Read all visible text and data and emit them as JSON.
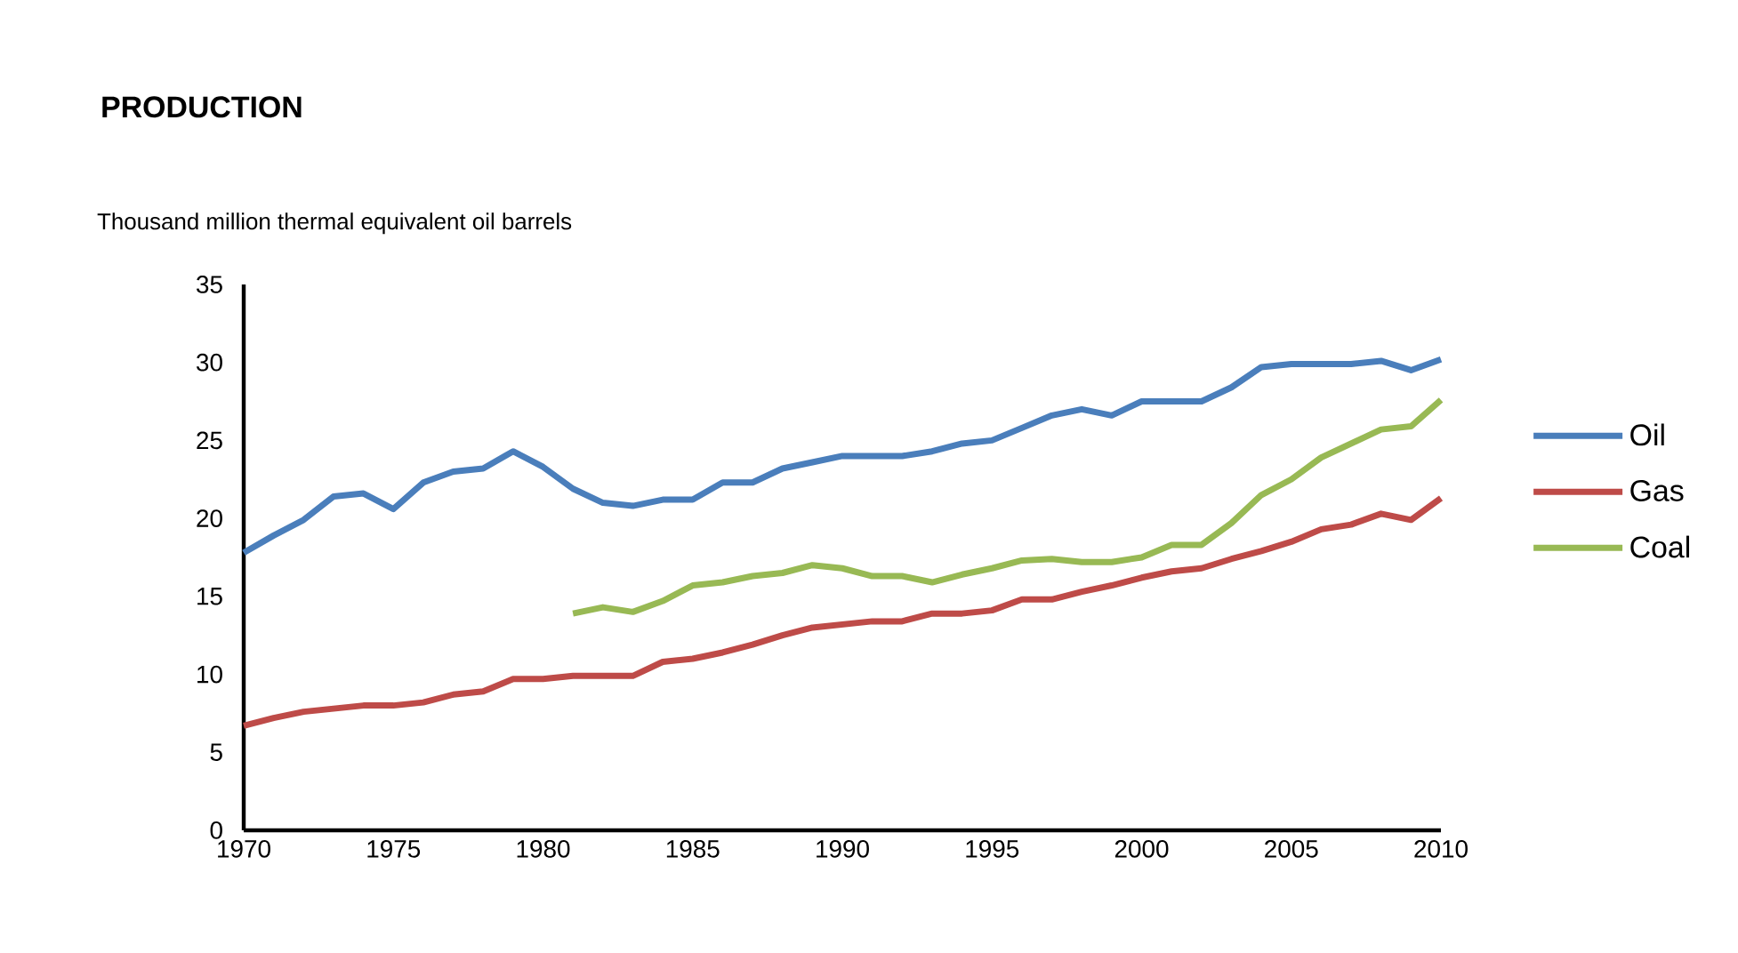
{
  "chart_data": {
    "type": "line",
    "title": "PRODUCTION",
    "ylabel": "Thousand million  thermal equivalent oil barrels",
    "x": [
      1970,
      1971,
      1972,
      1973,
      1974,
      1975,
      1976,
      1977,
      1978,
      1979,
      1980,
      1981,
      1982,
      1983,
      1984,
      1985,
      1986,
      1987,
      1988,
      1989,
      1990,
      1991,
      1992,
      1993,
      1994,
      1995,
      1996,
      1997,
      1998,
      1999,
      2000,
      2001,
      2002,
      2003,
      2004,
      2005,
      2006,
      2007,
      2008,
      2009,
      2010
    ],
    "series": [
      {
        "name": "Oil",
        "color": "#4a7ebb",
        "values": [
          17.8,
          18.9,
          19.9,
          21.4,
          21.6,
          20.6,
          22.3,
          23.0,
          23.2,
          24.3,
          23.3,
          21.9,
          21.0,
          20.8,
          21.2,
          21.2,
          22.3,
          22.3,
          23.2,
          23.6,
          24.0,
          24.0,
          24.0,
          24.3,
          24.8,
          25.0,
          25.8,
          26.6,
          27.0,
          26.6,
          27.5,
          27.5,
          27.5,
          28.4,
          29.7,
          29.9,
          29.9,
          29.9,
          30.1,
          29.5,
          30.2
        ]
      },
      {
        "name": "Gas",
        "color": "#be4b48",
        "values": [
          6.7,
          7.2,
          7.6,
          7.8,
          8.0,
          8.0,
          8.2,
          8.7,
          8.9,
          9.7,
          9.7,
          9.9,
          9.9,
          9.9,
          10.8,
          11.0,
          11.4,
          11.9,
          12.5,
          13.0,
          13.2,
          13.4,
          13.4,
          13.9,
          13.9,
          14.1,
          14.8,
          14.8,
          15.3,
          15.7,
          16.2,
          16.6,
          16.8,
          17.4,
          17.9,
          18.5,
          19.3,
          19.6,
          20.3,
          19.9,
          21.3
        ]
      },
      {
        "name": "Coal",
        "color": "#98b954",
        "values": [
          null,
          null,
          null,
          null,
          null,
          null,
          null,
          null,
          null,
          null,
          null,
          13.9,
          14.3,
          14.0,
          14.7,
          15.7,
          15.9,
          16.3,
          16.5,
          17.0,
          16.8,
          16.3,
          16.3,
          15.9,
          16.4,
          16.8,
          17.3,
          17.4,
          17.2,
          17.2,
          17.5,
          18.3,
          18.3,
          19.7,
          21.5,
          22.5,
          23.9,
          24.8,
          25.7,
          25.9,
          27.6
        ]
      }
    ],
    "xlim": [
      1970,
      2010
    ],
    "xticks": [
      1970,
      1975,
      1980,
      1985,
      1990,
      1995,
      2000,
      2005,
      2010
    ],
    "ylim": [
      0,
      35
    ],
    "yticks": [
      0,
      5,
      10,
      15,
      20,
      25,
      30,
      35
    ],
    "legend": "right",
    "line_style": "solid",
    "marker": "none",
    "grid": false
  }
}
